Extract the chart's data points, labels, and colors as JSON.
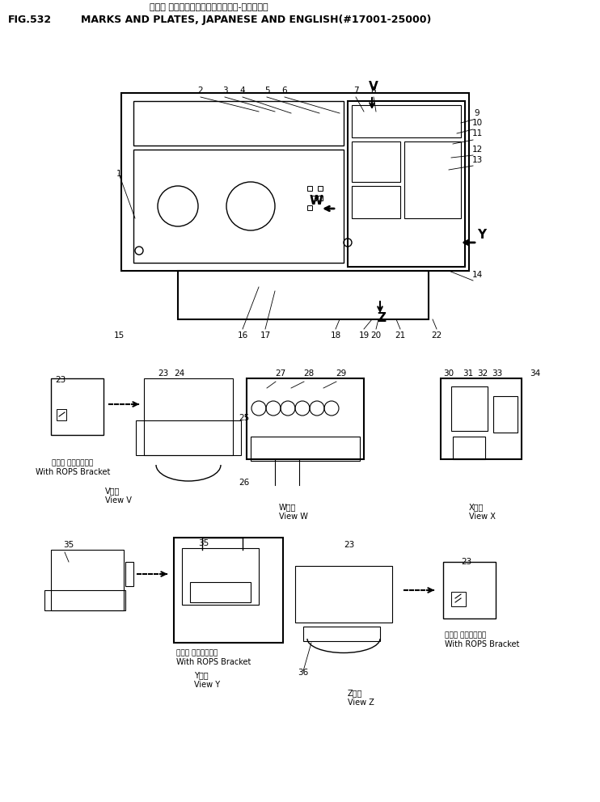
{
  "title_japanese": "マーク オヨビプレート（ニホンゴー-エイゴー）",
  "title_fig": "FIG.532",
  "title_english": "MARKS AND PLATES, JAPANESE AND ENGLISH(#17001-25000)",
  "bg_color": "#ffffff",
  "line_color": "#000000",
  "text_color": "#000000"
}
